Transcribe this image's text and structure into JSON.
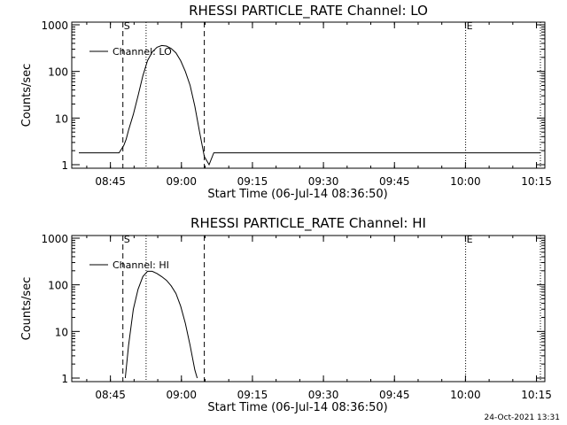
{
  "chart_data": [
    {
      "type": "line",
      "title": "RHESSI PARTICLE_RATE Channel: LO",
      "xlabel": "Start Time (06-Jul-14 08:36:50)",
      "ylabel": "Counts/sec",
      "yscale": "log",
      "ylim": [
        1,
        1000
      ],
      "xlim_minutes_after_start": [
        0,
        99
      ],
      "x_tick_labels": [
        "08:45",
        "09:00",
        "09:15",
        "09:30",
        "09:45",
        "10:00",
        "10:15"
      ],
      "y_tick_labels": [
        "1",
        "10",
        "100",
        "1000"
      ],
      "legend": "top-left",
      "series": [
        {
          "name": "Channel: LO",
          "x": [
            1.5,
            6,
            10,
            11,
            11.5,
            12,
            13,
            14,
            15,
            16,
            17,
            18,
            19,
            20,
            21,
            22,
            23,
            24,
            25,
            26,
            27,
            28,
            29,
            30,
            31,
            32,
            33,
            80,
            99
          ],
          "y": [
            1.8,
            1.8,
            1.8,
            2.6,
            3.5,
            5.5,
            12,
            30,
            80,
            170,
            260,
            330,
            360,
            350,
            310,
            250,
            170,
            100,
            50,
            18,
            5,
            1.5,
            1,
            1.8,
            1.8,
            1.8,
            1.8,
            1.8,
            1.8
          ]
        }
      ],
      "markers": [
        {
          "label": "S",
          "style": "dashed",
          "x": 10.8
        },
        {
          "label": "",
          "style": "dotted",
          "x": 15.7
        },
        {
          "label": "",
          "style": "dashed",
          "x": 28
        },
        {
          "label": "E",
          "style": "dotted",
          "x": 83.2
        },
        {
          "label": "",
          "style": "dotted",
          "x": 99
        }
      ]
    },
    {
      "type": "line",
      "title": "RHESSI PARTICLE_RATE Channel: HI",
      "xlabel": "Start Time (06-Jul-14 08:36:50)",
      "ylabel": "Counts/sec",
      "yscale": "log",
      "ylim": [
        1,
        1000
      ],
      "xlim_minutes_after_start": [
        0,
        99
      ],
      "x_tick_labels": [
        "08:45",
        "09:00",
        "09:15",
        "09:30",
        "09:45",
        "10:00",
        "10:15"
      ],
      "y_tick_labels": [
        "1",
        "10",
        "100",
        "1000"
      ],
      "legend": "top-left",
      "series": [
        {
          "name": "Channel: HI",
          "x": [
            11.3,
            12,
            13,
            14,
            15,
            16,
            17,
            18,
            19,
            20,
            21,
            22,
            23,
            24,
            25,
            26,
            26.5
          ],
          "y": [
            1,
            5,
            30,
            80,
            150,
            195,
            195,
            175,
            150,
            125,
            95,
            65,
            35,
            15,
            5,
            1.5,
            1
          ]
        }
      ],
      "markers": [
        {
          "label": "S",
          "style": "dashed",
          "x": 10.8
        },
        {
          "label": "",
          "style": "dotted",
          "x": 15.7
        },
        {
          "label": "",
          "style": "dashed",
          "x": 28
        },
        {
          "label": "E",
          "style": "dotted",
          "x": 83.2
        },
        {
          "label": "",
          "style": "dotted",
          "x": 99
        }
      ]
    }
  ],
  "footer": "24-Oct-2021 13:31"
}
